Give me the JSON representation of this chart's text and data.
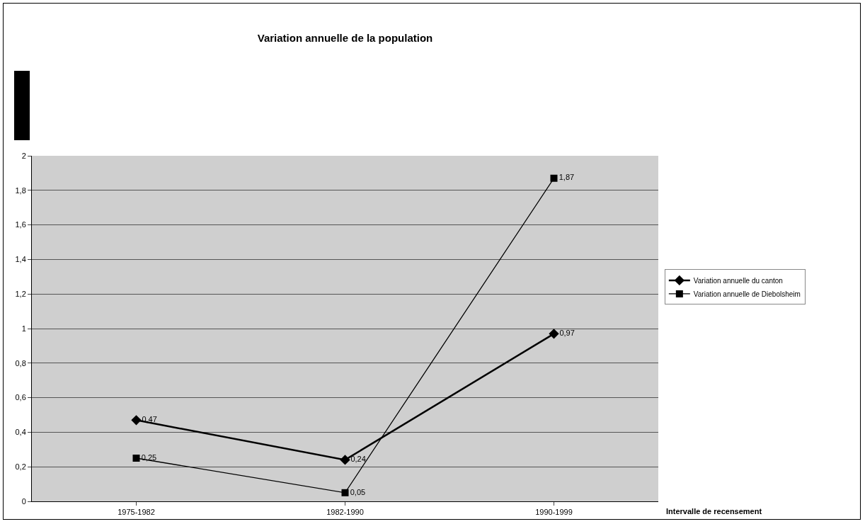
{
  "chart_data": {
    "type": "line",
    "title": "Variation annuelle de la population",
    "xlabel": "Intervalle de recensement",
    "categories": [
      "1975-1982",
      "1982-1990",
      "1990-1999"
    ],
    "series": [
      {
        "name": "Variation annuelle du canton",
        "color": "#000000",
        "marker": "diamond",
        "values": [
          0.47,
          0.24,
          0.97
        ],
        "value_labels": [
          "0,47",
          "0,24",
          "0,97"
        ]
      },
      {
        "name": "Variation annuelle de Diebolsheim",
        "color": "#000000",
        "marker": "square",
        "values": [
          0.25,
          0.05,
          1.87
        ],
        "value_labels": [
          "0,25",
          "0,05",
          "1,87"
        ]
      }
    ],
    "ylim": [
      0,
      2
    ],
    "yticks": [
      0,
      {
        "value": 0.2,
        "label": "0,2"
      },
      {
        "value": 0.4,
        "label": "0,4"
      },
      {
        "value": 0.6,
        "label": "0,6"
      },
      {
        "value": 0.8,
        "label": "0,8"
      },
      1,
      {
        "value": 1.2,
        "label": "1,2"
      },
      {
        "value": 1.4,
        "label": "1,4"
      },
      {
        "value": 1.6,
        "label": "1,6"
      },
      {
        "value": 1.8,
        "label": "1,8"
      },
      2
    ],
    "grid": "y",
    "legend": "right",
    "line_style": "solid"
  }
}
